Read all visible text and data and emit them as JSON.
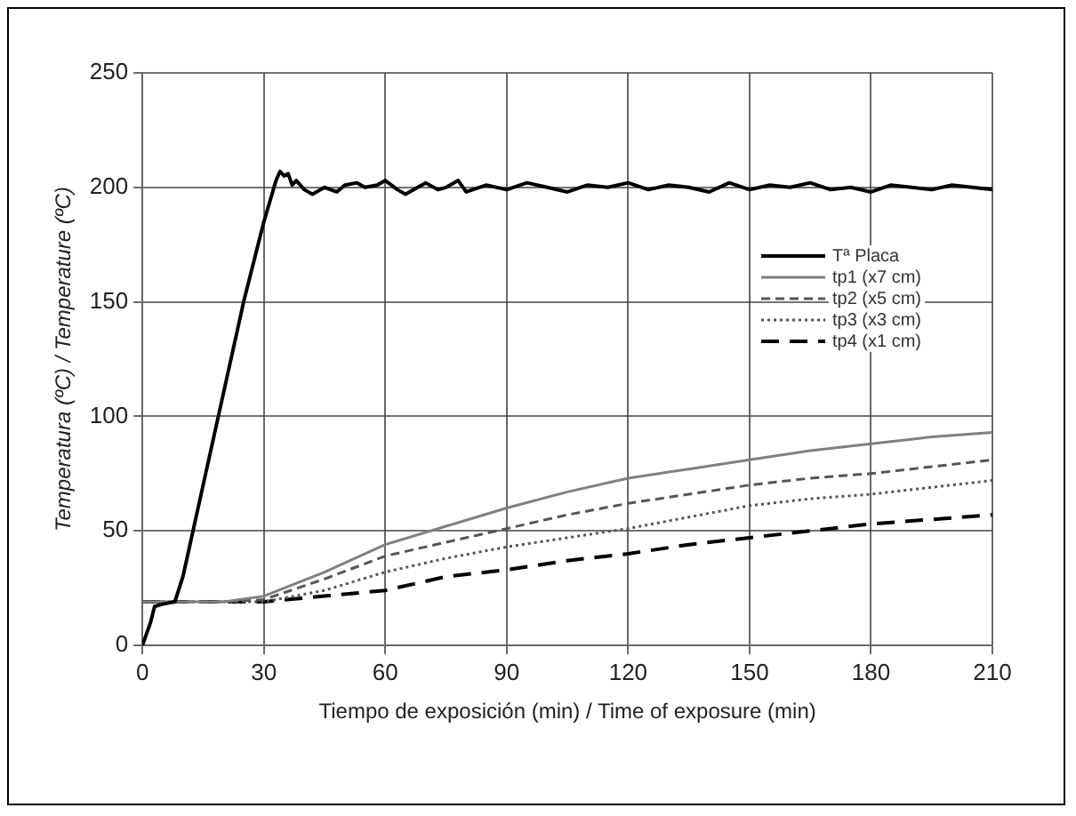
{
  "chart_data": {
    "type": "line",
    "xlabel": "Tiempo de exposición (min) / Time of exposure (min)",
    "ylabel": "Temperatura (ºC) / Temperature (ºC)",
    "xlim": [
      0,
      210
    ],
    "xticks": [
      0,
      30,
      60,
      90,
      120,
      150,
      180,
      210
    ],
    "ylim": [
      0,
      250
    ],
    "yticks": [
      0,
      50,
      100,
      150,
      200,
      250
    ],
    "grid": true,
    "legend": "top right",
    "marker": "none",
    "series": [
      {
        "name": "Tª Placa",
        "color": "#000000",
        "line_style": "solid",
        "x": [
          0,
          1,
          2,
          3,
          5,
          8,
          10,
          15,
          20,
          25,
          30,
          33,
          34,
          35,
          36,
          37,
          38,
          40,
          42,
          45,
          48,
          50,
          53,
          55,
          58,
          60,
          63,
          65,
          68,
          70,
          73,
          75,
          78,
          80,
          85,
          90,
          95,
          100,
          105,
          110,
          115,
          120,
          125,
          130,
          135,
          140,
          145,
          150,
          155,
          160,
          165,
          170,
          175,
          180,
          185,
          190,
          195,
          200,
          205,
          210
        ],
        "values": [
          0,
          5,
          10,
          17,
          18,
          19,
          30,
          70,
          110,
          150,
          185,
          203,
          207,
          205,
          206,
          201,
          203,
          199,
          197,
          200,
          198,
          201,
          202,
          200,
          201,
          203,
          199,
          197,
          200,
          202,
          199,
          200,
          203,
          198,
          201,
          199,
          202,
          200,
          198,
          201,
          200,
          202,
          199,
          201,
          200,
          198,
          202,
          199,
          201,
          200,
          202,
          199,
          200,
          198,
          201,
          200,
          199,
          201,
          200,
          199
        ]
      },
      {
        "name": "tp1 (x7 cm)",
        "color": "#808080",
        "line_style": "solid",
        "x": [
          0,
          10,
          20,
          30,
          45,
          60,
          75,
          90,
          105,
          120,
          135,
          150,
          165,
          180,
          195,
          210
        ],
        "values": [
          19,
          19,
          19,
          21.5,
          32,
          44,
          52,
          60,
          67,
          73,
          77,
          81,
          85,
          88,
          91,
          93
        ]
      },
      {
        "name": "tp2 (x5 cm)",
        "color": "#555555",
        "line_style": "dashed",
        "x": [
          0,
          10,
          20,
          30,
          45,
          60,
          75,
          90,
          105,
          120,
          135,
          150,
          165,
          180,
          195,
          210
        ],
        "values": [
          19,
          19,
          19,
          20,
          29,
          39,
          45,
          51,
          57,
          62,
          66,
          70,
          73,
          75,
          78,
          81
        ]
      },
      {
        "name": "tp3 (x3 cm)",
        "color": "#555555",
        "line_style": "dotted",
        "x": [
          0,
          10,
          20,
          30,
          45,
          60,
          75,
          90,
          105,
          120,
          135,
          150,
          165,
          180,
          195,
          210
        ],
        "values": [
          19,
          19,
          19,
          19,
          24,
          32,
          38,
          43,
          47,
          51,
          56,
          61,
          64,
          66,
          69,
          72
        ]
      },
      {
        "name": "tp4 (x1 cm)",
        "color": "#000000",
        "line_style": "dashed",
        "x": [
          0,
          10,
          20,
          30,
          45,
          60,
          75,
          90,
          105,
          120,
          135,
          150,
          165,
          180,
          195,
          210
        ],
        "values": [
          19,
          19,
          19,
          19,
          21.5,
          24,
          30,
          33,
          37,
          40,
          44,
          47,
          50,
          53,
          55,
          57
        ]
      }
    ]
  }
}
